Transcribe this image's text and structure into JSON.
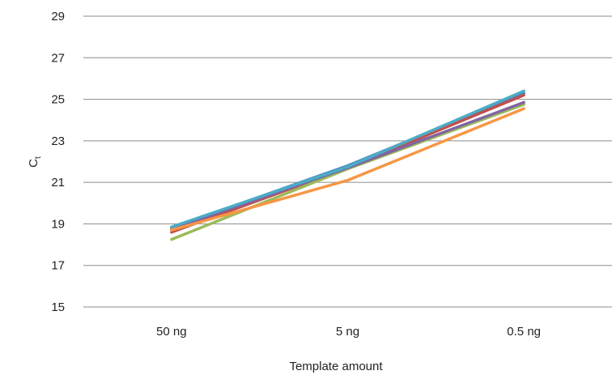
{
  "chart_data": {
    "type": "line",
    "title": "",
    "xlabel": "Template amount",
    "ylabel": {
      "main": "C",
      "sub": "t"
    },
    "categories": [
      "50 ng",
      "5 ng",
      "0.5 ng"
    ],
    "ylim": [
      15,
      29
    ],
    "yticks": [
      15,
      17,
      19,
      21,
      23,
      25,
      27,
      29
    ],
    "grid": true,
    "legend": "none",
    "series": [
      {
        "color": "#4f81bd",
        "values": [
          18.8,
          21.8,
          25.3
        ]
      },
      {
        "color": "#c0504d",
        "values": [
          18.6,
          21.7,
          25.2
        ]
      },
      {
        "color": "#9bbb59",
        "values": [
          18.25,
          21.65,
          24.75
        ]
      },
      {
        "color": "#8064a2",
        "values": [
          18.75,
          21.7,
          24.85
        ]
      },
      {
        "color": "#4bacc6",
        "values": [
          18.85,
          21.75,
          25.4
        ]
      },
      {
        "color": "#f79646",
        "values": [
          18.7,
          21.1,
          24.55
        ]
      }
    ]
  }
}
